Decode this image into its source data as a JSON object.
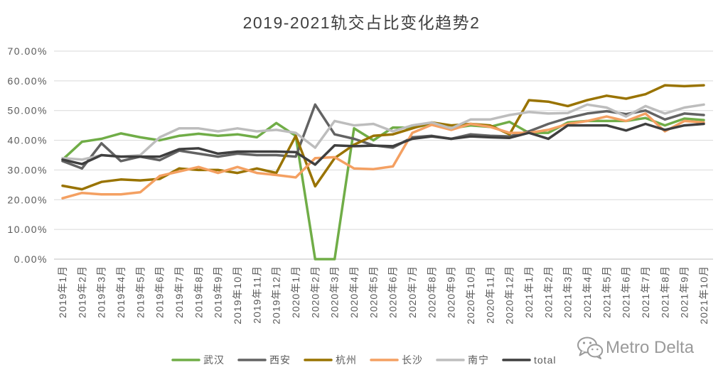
{
  "chart_data": {
    "type": "line",
    "title": "2019-2021轨交占比变化趋势2",
    "categories": [
      "2019年1月",
      "2019年2月",
      "2019年3月",
      "2019年4月",
      "2019年5月",
      "2019年6月",
      "2019年7月",
      "2019年8月",
      "2019年9月",
      "2019年10月",
      "2019年11月",
      "2019年12月",
      "2020年1月",
      "2020年2月",
      "2020年3月",
      "2020年4月",
      "2020年5月",
      "2020年6月",
      "2020年7月",
      "2020年8月",
      "2020年9月",
      "2020年10月",
      "2020年11月",
      "2020年12月",
      "2021年1月",
      "2021年2月",
      "2021年3月",
      "2021年4月",
      "2021年5月",
      "2021年6月",
      "2021年7月",
      "2021年8月",
      "2021年9月",
      "2021年10月"
    ],
    "ylim": [
      0,
      70
    ],
    "yticks": [
      "0.00%",
      "10.00%",
      "20.00%",
      "30.00%",
      "40.00%",
      "50.00%",
      "60.00%",
      "70.00%"
    ],
    "grid": true,
    "legend_position": "bottom",
    "series": [
      {
        "name": "武汉",
        "color": "#70AD47",
        "values": [
          33.5,
          39.5,
          40.5,
          42.3,
          41.0,
          40.0,
          41.5,
          42.2,
          41.5,
          42.0,
          41.0,
          45.8,
          41.5,
          0.0,
          0.0,
          44.0,
          40.0,
          44.3,
          44.2,
          45.5,
          44.0,
          45.0,
          44.5,
          46.2,
          42.5,
          42.5,
          46.0,
          46.5,
          46.5,
          46.5,
          47.5,
          45.0,
          47.3,
          46.8
        ]
      },
      {
        "name": "西安",
        "color": "#636363",
        "values": [
          33.0,
          30.5,
          39.0,
          33.0,
          34.5,
          33.3,
          36.5,
          35.5,
          34.5,
          35.5,
          35.0,
          35.0,
          34.5,
          52.0,
          42.0,
          40.5,
          38.3,
          37.5,
          41.0,
          41.5,
          40.5,
          42.0,
          41.5,
          41.3,
          43.0,
          45.5,
          47.5,
          49.0,
          49.8,
          48.8,
          50.0,
          47.0,
          49.0,
          48.5
        ]
      },
      {
        "name": "杭州",
        "color": "#997300",
        "values": [
          24.7,
          23.5,
          26.0,
          26.8,
          26.5,
          27.0,
          30.5,
          30.0,
          30.0,
          29.0,
          30.5,
          29.0,
          41.5,
          24.5,
          34.0,
          38.5,
          41.5,
          42.0,
          44.0,
          46.0,
          45.0,
          45.5,
          45.0,
          42.0,
          53.5,
          53.0,
          51.5,
          53.5,
          55.0,
          54.0,
          55.5,
          58.5,
          58.2,
          58.5
        ]
      },
      {
        "name": "长沙",
        "color": "#F4A062",
        "values": [
          20.5,
          22.3,
          21.8,
          21.8,
          22.5,
          28.0,
          29.5,
          31.0,
          29.0,
          31.0,
          29.0,
          28.3,
          27.5,
          34.0,
          34.3,
          30.5,
          30.3,
          31.2,
          42.5,
          45.2,
          43.5,
          45.5,
          44.5,
          42.5,
          42.5,
          43.5,
          45.5,
          46.5,
          48.0,
          46.5,
          49.0,
          43.0,
          46.5,
          46.0
        ]
      },
      {
        "name": "南宁",
        "color": "#BDBDBD",
        "values": [
          34.0,
          33.5,
          35.0,
          34.5,
          35.0,
          41.0,
          44.0,
          44.0,
          43.0,
          44.0,
          43.0,
          43.5,
          42.5,
          37.5,
          46.5,
          45.0,
          45.5,
          43.0,
          45.0,
          46.0,
          44.0,
          47.0,
          47.0,
          48.5,
          49.5,
          49.0,
          49.2,
          52.0,
          51.0,
          48.0,
          51.5,
          49.0,
          51.0,
          52.0
        ]
      },
      {
        "name": "total",
        "color": "#3F3F3F",
        "values": [
          33.5,
          32.0,
          35.0,
          34.5,
          34.5,
          34.5,
          37.0,
          37.3,
          35.5,
          36.2,
          36.2,
          36.2,
          36.0,
          31.8,
          38.3,
          38.0,
          38.2,
          38.0,
          40.5,
          41.3,
          40.5,
          41.3,
          41.0,
          40.8,
          42.5,
          40.5,
          45.0,
          45.0,
          45.0,
          43.3,
          45.5,
          43.5,
          45.0,
          45.5
        ]
      }
    ]
  },
  "watermark": {
    "text": "Metro Delta",
    "icon": "wechat-icon",
    "color": "#9a9a9a"
  }
}
